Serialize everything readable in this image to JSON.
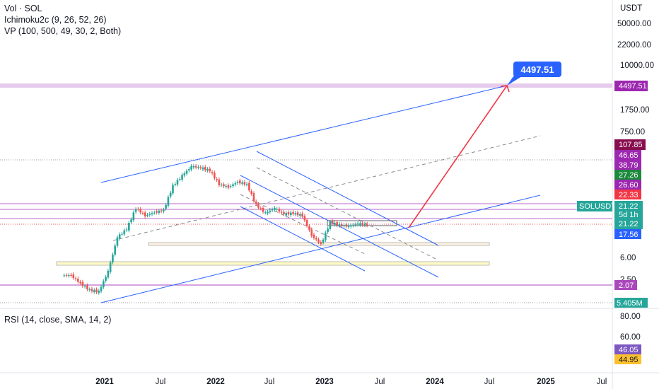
{
  "legend": {
    "line1": "Vol · SOL",
    "line2": "Ichimoku2c (9, 26, 52, 26)",
    "line3": "VP (100, 500, 49, 30, 2, Both)",
    "rsi": "RSI (14, close, SMA, 14, 2)"
  },
  "colors": {
    "up": "#26a69a",
    "down": "#ef5350",
    "channel": "#2962ff",
    "dashed": "#868993",
    "target": "#f23645",
    "level": "#ba68c8"
  },
  "chart_data": [
    {
      "type": "candlestick",
      "symbol": "SOLUSDT",
      "title": "",
      "ylabel": "USDT",
      "yscale": "log",
      "price_ticks": [
        "50000.00",
        "22000.00",
        "10000.00",
        "1750.00",
        "750.00",
        "6.00",
        "2.50"
      ],
      "badges": [
        {
          "label": "4497.51",
          "color": "#9c27b0"
        },
        {
          "label": "107.85",
          "color": "#880e4f"
        },
        {
          "label": "46.65",
          "color": "#9c27b0"
        },
        {
          "label": "38.79",
          "color": "#9c27b0"
        },
        {
          "label": "27.26",
          "color": "#1b8a3c"
        },
        {
          "label": "26.60",
          "color": "#9c27b0"
        },
        {
          "label": "22.33",
          "color": "#f23645"
        },
        {
          "label": "21.22",
          "color": "#26a69a"
        },
        {
          "label": "5d 1h",
          "color": "#26a69a"
        },
        {
          "label": "21.22",
          "color": "#26a69a"
        },
        {
          "label": "17.56",
          "color": "#2962ff"
        },
        {
          "label": "2.07",
          "color": "#ab47bc"
        },
        {
          "label": "5.405M",
          "color": "#26a69a"
        }
      ],
      "symbol_badge": "SOLUSDT",
      "callout": "4497.51",
      "time_ticks": [
        "2021",
        "Jul",
        "2022",
        "Jul",
        "2023",
        "Jul",
        "2024",
        "Jul",
        "2025",
        "Jul"
      ],
      "series_close": [
        {
          "t": "2020-09",
          "close": 3.0
        },
        {
          "t": "2020-10",
          "close": 2.2
        },
        {
          "t": "2020-11",
          "close": 1.7
        },
        {
          "t": "2020-12",
          "close": 1.6
        },
        {
          "t": "2021-01",
          "close": 3.5
        },
        {
          "t": "2021-02",
          "close": 13
        },
        {
          "t": "2021-03",
          "close": 18
        },
        {
          "t": "2021-04",
          "close": 40
        },
        {
          "t": "2021-05",
          "close": 30
        },
        {
          "t": "2021-06",
          "close": 34
        },
        {
          "t": "2021-07",
          "close": 37
        },
        {
          "t": "2021-08",
          "close": 95
        },
        {
          "t": "2021-09",
          "close": 140
        },
        {
          "t": "2021-10",
          "close": 200
        },
        {
          "t": "2021-11",
          "close": 190
        },
        {
          "t": "2021-12",
          "close": 170
        },
        {
          "t": "2022-01",
          "close": 100
        },
        {
          "t": "2022-02",
          "close": 90
        },
        {
          "t": "2022-03",
          "close": 110
        },
        {
          "t": "2022-04",
          "close": 100
        },
        {
          "t": "2022-05",
          "close": 45
        },
        {
          "t": "2022-06",
          "close": 33
        },
        {
          "t": "2022-07",
          "close": 40
        },
        {
          "t": "2022-08",
          "close": 32
        },
        {
          "t": "2022-09",
          "close": 33
        },
        {
          "t": "2022-10",
          "close": 30
        },
        {
          "t": "2022-11",
          "close": 14
        },
        {
          "t": "2022-12",
          "close": 10
        },
        {
          "t": "2023-01",
          "close": 23
        },
        {
          "t": "2023-02",
          "close": 21
        },
        {
          "t": "2023-03",
          "close": 20
        },
        {
          "t": "2023-04",
          "close": 22
        },
        {
          "t": "2023-05",
          "close": 21
        }
      ]
    },
    {
      "type": "line",
      "title": "RSI (14, close, SMA, 14, 2)",
      "rsi_ticks": [
        "80.00",
        "60.00"
      ],
      "badges": [
        {
          "label": "46.05",
          "color": "#7e57c2"
        },
        {
          "label": "44.95",
          "color": "#fbc02d"
        }
      ]
    }
  ]
}
